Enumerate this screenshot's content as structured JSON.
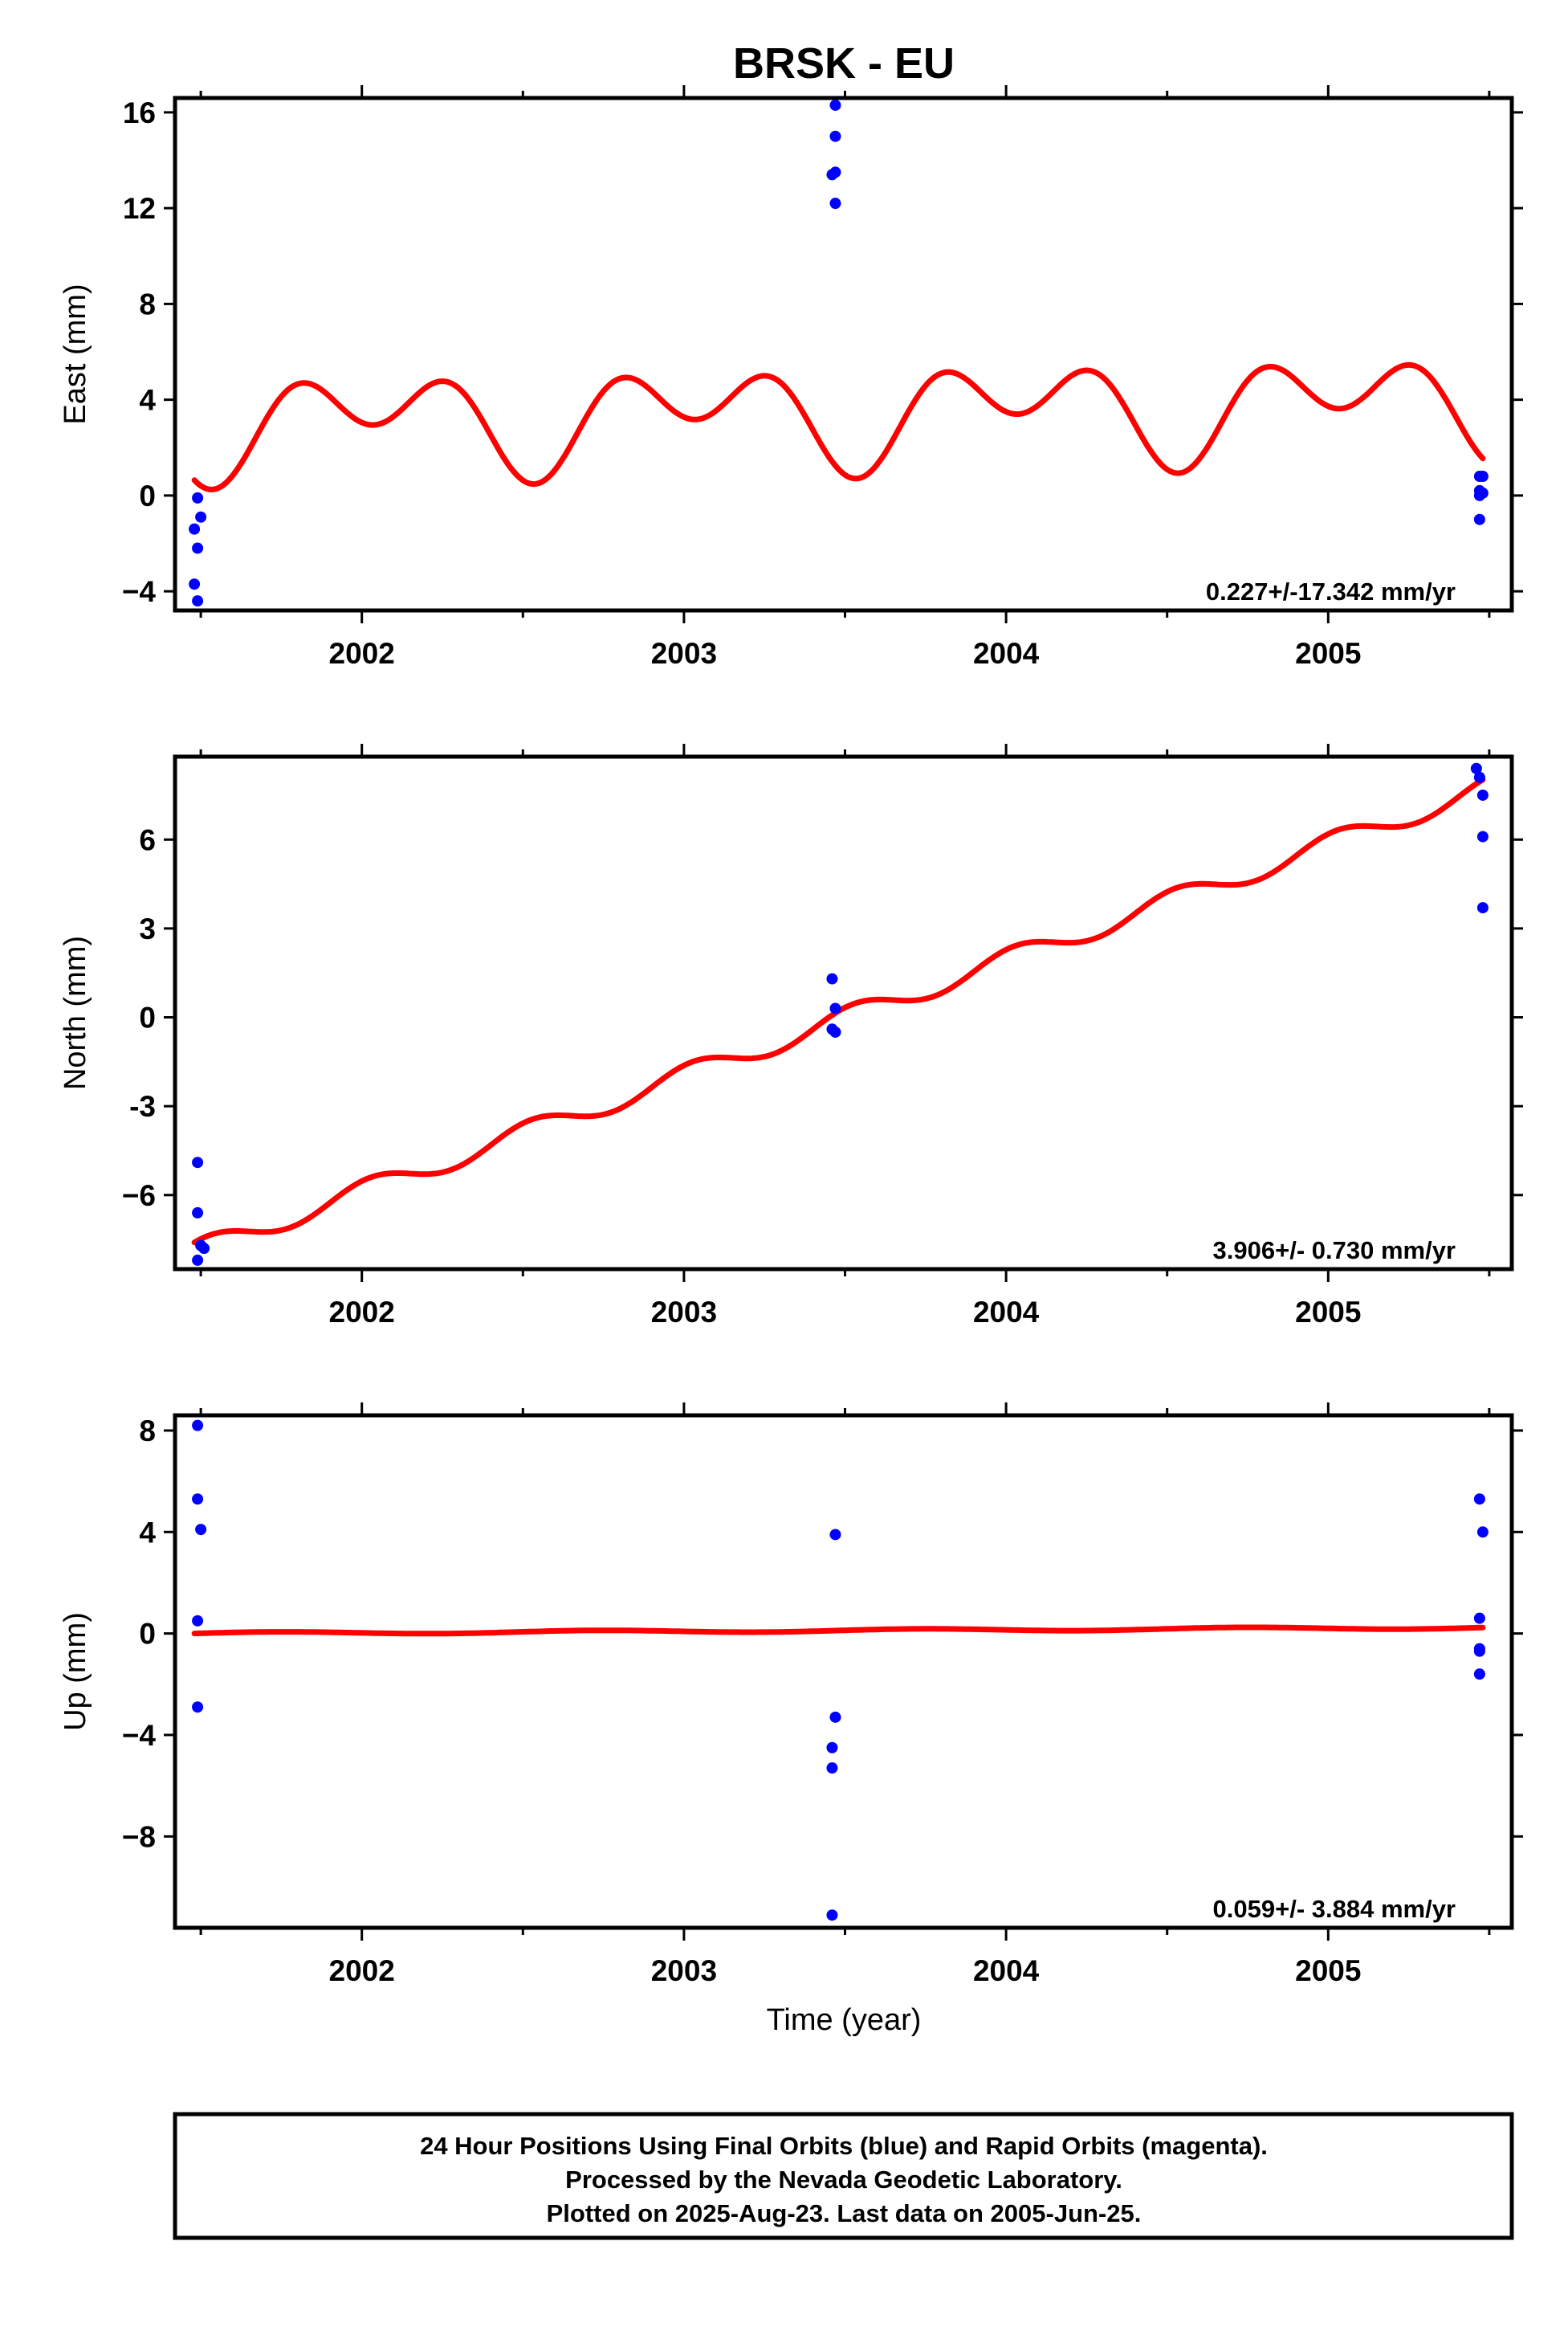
{
  "title": "BRSK - EU",
  "x_axis_label": "Time (year)",
  "footer": {
    "line1": "24 Hour Positions Using Final Orbits (blue) and Rapid Orbits (magenta).",
    "line2": "Processed by the Nevada Geodetic Laboratory.",
    "line3": "Plotted on 2025-Aug-23. Last data on 2005-Jun-25."
  },
  "colors": {
    "points": "#0000ff",
    "fit": "#ff0000",
    "axes": "#000000"
  },
  "chart_data": [
    {
      "type": "scatter",
      "name": "east",
      "ylabel": "East (mm)",
      "xlim": [
        2001.42,
        2005.57
      ],
      "ylim": [
        -4.8,
        16.6
      ],
      "yticks": [
        -4,
        0,
        4,
        8,
        12,
        16
      ],
      "ytick_labels": [
        "−4",
        "0",
        "4",
        "8",
        "12",
        "16"
      ],
      "xticks": [
        2002,
        2003,
        2004,
        2005
      ],
      "xtick_labels": [
        "2002",
        "2003",
        "2004",
        "2005"
      ],
      "rate_text": "0.227+/-17.342 mm/yr",
      "points": [
        [
          2001.49,
          -0.1
        ],
        [
          2001.5,
          -0.9
        ],
        [
          2001.48,
          -1.4
        ],
        [
          2001.49,
          -2.2
        ],
        [
          2001.48,
          -3.7
        ],
        [
          2001.49,
          -4.4
        ],
        [
          2003.47,
          16.3
        ],
        [
          2003.47,
          15.0
        ],
        [
          2003.47,
          13.5
        ],
        [
          2003.46,
          13.4
        ],
        [
          2003.47,
          12.2
        ],
        [
          2005.47,
          0.8
        ],
        [
          2005.48,
          0.8
        ],
        [
          2005.47,
          0.2
        ],
        [
          2005.47,
          0.0
        ],
        [
          2005.48,
          0.1
        ],
        [
          2005.47,
          -1.0
        ]
      ],
      "fit": {
        "t0": 2001.48,
        "t1": 2005.48,
        "offset": 3.0,
        "slope": 0.227,
        "annual": [
          -0.42,
          -1.22
        ],
        "semiannual": [
          -0.93,
          -1.14
        ]
      }
    },
    {
      "type": "scatter",
      "name": "north",
      "ylabel": "North (mm)",
      "xlim": [
        2001.42,
        2005.57
      ],
      "ylim": [
        -8.5,
        8.8
      ],
      "yticks": [
        -6,
        -3,
        0,
        3,
        6
      ],
      "ytick_labels": [
        "−6",
        "-3",
        "0",
        "3",
        "6"
      ],
      "xticks": [
        2002,
        2003,
        2004,
        2005
      ],
      "xtick_labels": [
        "2002",
        "2003",
        "2004",
        "2005"
      ],
      "rate_text": "3.906+/- 0.730 mm/yr",
      "points": [
        [
          2001.49,
          -4.9
        ],
        [
          2001.49,
          -6.6
        ],
        [
          2001.5,
          -7.7
        ],
        [
          2001.51,
          -7.8
        ],
        [
          2001.49,
          -8.2
        ],
        [
          2003.46,
          1.3
        ],
        [
          2003.47,
          0.3
        ],
        [
          2003.46,
          -0.4
        ],
        [
          2003.47,
          -0.5
        ],
        [
          2005.46,
          8.4
        ],
        [
          2005.47,
          8.1
        ],
        [
          2005.48,
          7.5
        ],
        [
          2005.48,
          6.1
        ],
        [
          2005.48,
          3.7
        ]
      ],
      "fit": {
        "t0": 2001.48,
        "t1": 2005.48,
        "offset": -7.9,
        "slope": 3.906,
        "annual": [
          0.0,
          0.0
        ],
        "semiannual": [
          0.2,
          0.3
        ]
      }
    },
    {
      "type": "scatter",
      "name": "up",
      "ylabel": "Up (mm)",
      "xlim": [
        2001.42,
        2005.57
      ],
      "ylim": [
        -11.6,
        8.6
      ],
      "yticks": [
        -8,
        -4,
        0,
        4,
        8
      ],
      "ytick_labels": [
        "−8",
        "−4",
        "0",
        "4",
        "8"
      ],
      "xticks": [
        2002,
        2003,
        2004,
        2005
      ],
      "xtick_labels": [
        "2002",
        "2003",
        "2004",
        "2005"
      ],
      "rate_text": "0.059+/- 3.884 mm/yr",
      "points": [
        [
          2001.49,
          8.2
        ],
        [
          2001.49,
          5.3
        ],
        [
          2001.5,
          4.1
        ],
        [
          2001.49,
          0.5
        ],
        [
          2001.49,
          -2.9
        ],
        [
          2003.47,
          3.9
        ],
        [
          2003.47,
          -3.3
        ],
        [
          2003.46,
          -4.5
        ],
        [
          2003.46,
          -5.3
        ],
        [
          2003.46,
          -11.1
        ],
        [
          2005.47,
          5.3
        ],
        [
          2005.48,
          4.0
        ],
        [
          2005.47,
          0.6
        ],
        [
          2005.47,
          -0.6
        ],
        [
          2005.47,
          -0.7
        ],
        [
          2005.47,
          -1.6
        ]
      ],
      "fit": {
        "t0": 2001.48,
        "t1": 2005.48,
        "offset": 0.0,
        "slope": 0.059,
        "annual": [
          0.05,
          0.0
        ],
        "semiannual": [
          0.0,
          0.0
        ]
      }
    }
  ]
}
